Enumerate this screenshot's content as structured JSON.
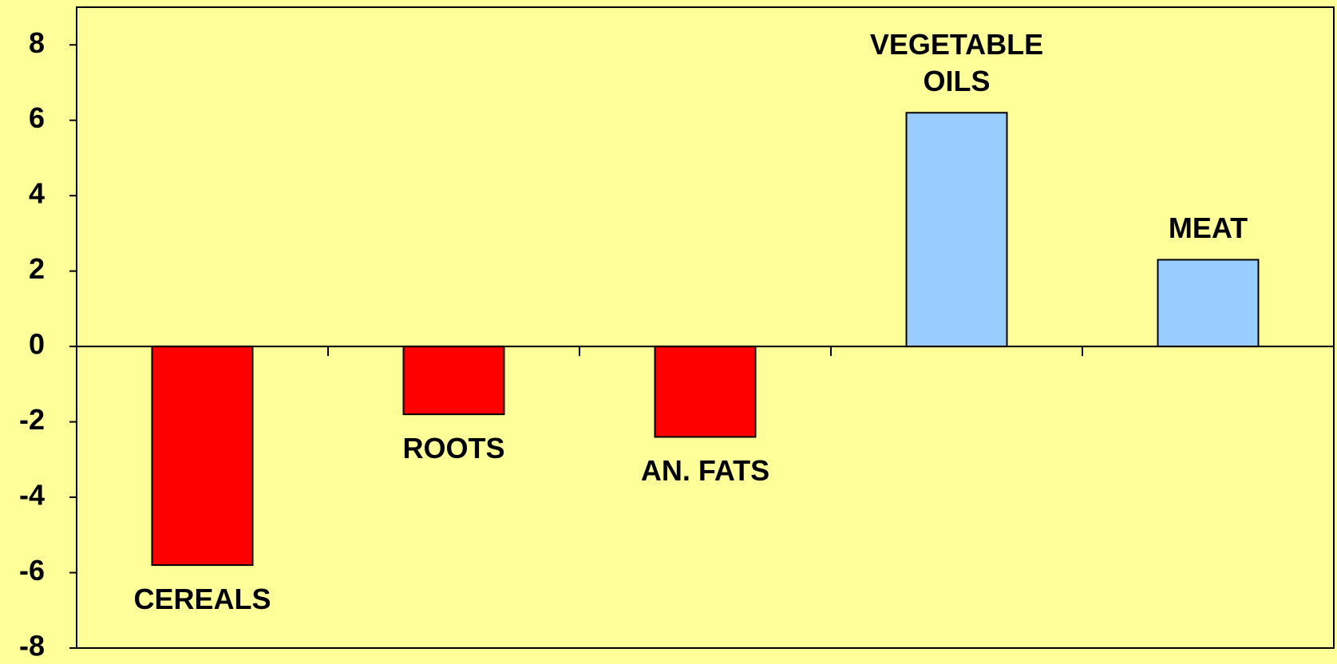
{
  "chart_data": {
    "type": "bar",
    "categories": [
      "CEREALS",
      "ROOTS",
      "AN. FATS",
      "VEGETABLE OILS",
      "MEAT"
    ],
    "values": [
      -5.8,
      -1.8,
      -2.4,
      6.2,
      2.3
    ],
    "colors": [
      "#ff0000",
      "#ff0000",
      "#ff0000",
      "#99ccff",
      "#99ccff"
    ],
    "ylim": [
      -8,
      9
    ],
    "yticks": [
      -8,
      -6,
      -4,
      -2,
      0,
      2,
      4,
      6,
      8
    ],
    "grid": false
  }
}
